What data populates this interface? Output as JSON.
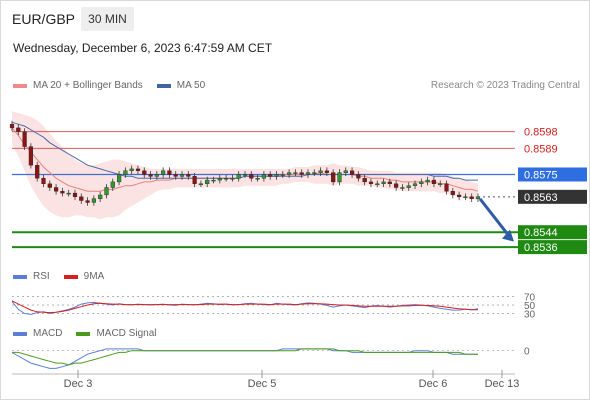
{
  "header": {
    "symbol": "EUR/GBP",
    "timeframe": "30 MIN",
    "datetime": "Wednesday, December 6, 2023 6:47:59 AM CET"
  },
  "legend_main": [
    {
      "label": "MA 20 + Bollinger Bands",
      "color": "#f08a8a"
    },
    {
      "label": "MA 50",
      "color": "#3f64a5"
    }
  ],
  "copyright": "Research © 2023 Trading Central",
  "legend_rsi": [
    {
      "label": "RSI",
      "color": "#5b7fd6"
    },
    {
      "label": "9MA",
      "color": "#d62020"
    }
  ],
  "legend_macd": [
    {
      "label": "MACD",
      "color": "#5b7fd6"
    },
    {
      "label": "MACD Signal",
      "color": "#4c9a1c"
    }
  ],
  "chart_data": {
    "type": "candlestick",
    "x_tick_labels": [
      "Dec 3",
      "Dec 5",
      "Dec 6",
      "Dec 13"
    ],
    "price_ylim": [
      0.8528,
      0.8615
    ],
    "last_price": 0.8563,
    "levels": [
      {
        "value": 0.8598,
        "label": "0.8598",
        "kind": "resistance"
      },
      {
        "value": 0.8589,
        "label": "0.8589",
        "kind": "resistance"
      },
      {
        "value": 0.8575,
        "label": "0.8575",
        "kind": "pivot"
      },
      {
        "value": 0.8563,
        "label": "0.8563",
        "kind": "last"
      },
      {
        "value": 0.8544,
        "label": "0.8544",
        "kind": "support"
      },
      {
        "value": 0.8536,
        "label": "0.8536",
        "kind": "support"
      }
    ],
    "forecast_target": 0.854,
    "close_series": [
      0.86,
      0.8598,
      0.859,
      0.858,
      0.8573,
      0.857,
      0.8568,
      0.8566,
      0.8565,
      0.8565,
      0.8563,
      0.8561,
      0.856,
      0.8562,
      0.8564,
      0.8568,
      0.8571,
      0.8575,
      0.8577,
      0.8578,
      0.8577,
      0.8575,
      0.8574,
      0.8575,
      0.8577,
      0.8575,
      0.8574,
      0.8575,
      0.8574,
      0.857,
      0.857,
      0.8572,
      0.8572,
      0.8573,
      0.8573,
      0.8573,
      0.8575,
      0.8575,
      0.8573,
      0.8573,
      0.8575,
      0.8574,
      0.8575,
      0.8575,
      0.8576,
      0.8576,
      0.8575,
      0.8576,
      0.8576,
      0.8577,
      0.8576,
      0.8571,
      0.8576,
      0.8577,
      0.8575,
      0.8573,
      0.8571,
      0.857,
      0.857,
      0.8571,
      0.857,
      0.8568,
      0.8568,
      0.8569,
      0.857,
      0.8571,
      0.8572,
      0.857,
      0.857,
      0.8566,
      0.8564,
      0.8563,
      0.8563,
      0.8562,
      0.8563
    ],
    "ma20": [
      0.86,
      0.8596,
      0.8591,
      0.8587,
      0.8583,
      0.8579,
      0.8576,
      0.8573,
      0.8571,
      0.8569,
      0.8568,
      0.8567,
      0.8566,
      0.8566,
      0.8566,
      0.8567,
      0.8567,
      0.8568,
      0.8569,
      0.8569,
      0.857,
      0.8571,
      0.8571,
      0.8572,
      0.8572,
      0.8572,
      0.8573,
      0.8573,
      0.8573,
      0.8573,
      0.8573,
      0.8573,
      0.8573,
      0.8573,
      0.8573,
      0.8573,
      0.8573,
      0.8574,
      0.8574,
      0.8574,
      0.8574,
      0.8574,
      0.8574,
      0.8575,
      0.8575,
      0.8575,
      0.8575,
      0.8575,
      0.8575,
      0.8576,
      0.8575,
      0.8575,
      0.8575,
      0.8575,
      0.8575,
      0.8574,
      0.8574,
      0.8573,
      0.8573,
      0.8573,
      0.8572,
      0.8572,
      0.8571,
      0.8571,
      0.8571,
      0.8571,
      0.8571,
      0.8571,
      0.857,
      0.857,
      0.8569,
      0.8568,
      0.8567,
      0.8567,
      0.8566
    ],
    "ma50": [
      0.8603,
      0.8602,
      0.8601,
      0.8599,
      0.8597,
      0.8595,
      0.8592,
      0.859,
      0.8588,
      0.8586,
      0.8584,
      0.8582,
      0.858,
      0.8579,
      0.8578,
      0.8577,
      0.8576,
      0.8575,
      0.8574,
      0.8574,
      0.8573,
      0.8573,
      0.8573,
      0.8573,
      0.8573,
      0.8573,
      0.8573,
      0.8573,
      0.8573,
      0.8573,
      0.8573,
      0.8573,
      0.8573,
      0.8573,
      0.8573,
      0.8573,
      0.8573,
      0.8574,
      0.8574,
      0.8574,
      0.8574,
      0.8574,
      0.8574,
      0.8574,
      0.8574,
      0.8574,
      0.8574,
      0.8575,
      0.8575,
      0.8575,
      0.8575,
      0.8575,
      0.8575,
      0.8575,
      0.8575,
      0.8575,
      0.8575,
      0.8575,
      0.8575,
      0.8575,
      0.8575,
      0.8575,
      0.8575,
      0.8575,
      0.8575,
      0.8575,
      0.8575,
      0.8574,
      0.8574,
      0.8574,
      0.8573,
      0.8573,
      0.8572,
      0.8572,
      0.8572
    ],
    "bb_upper": [
      0.8609,
      0.8608,
      0.8607,
      0.8606,
      0.8604,
      0.8601,
      0.8597,
      0.8593,
      0.859,
      0.8586,
      0.8583,
      0.8581,
      0.858,
      0.858,
      0.8581,
      0.8582,
      0.8583,
      0.8583,
      0.8582,
      0.8581,
      0.858,
      0.8579,
      0.8578,
      0.8578,
      0.8578,
      0.8578,
      0.8578,
      0.8578,
      0.8578,
      0.8578,
      0.8578,
      0.8578,
      0.8578,
      0.8578,
      0.8578,
      0.8578,
      0.8578,
      0.8578,
      0.8578,
      0.8578,
      0.8578,
      0.8578,
      0.8578,
      0.8578,
      0.8578,
      0.8579,
      0.8579,
      0.8579,
      0.858,
      0.858,
      0.858,
      0.8581,
      0.858,
      0.858,
      0.8579,
      0.8579,
      0.8578,
      0.8577,
      0.8577,
      0.8577,
      0.8577,
      0.8576,
      0.8576,
      0.8576,
      0.8576,
      0.8576,
      0.8576,
      0.8576,
      0.8576,
      0.8575,
      0.8574,
      0.8573,
      0.8572,
      0.8571,
      0.857
    ],
    "bb_lower": [
      0.8591,
      0.8585,
      0.8577,
      0.8569,
      0.8563,
      0.8558,
      0.8555,
      0.8553,
      0.8552,
      0.8552,
      0.8553,
      0.8553,
      0.8552,
      0.8552,
      0.8551,
      0.8552,
      0.8552,
      0.8553,
      0.8556,
      0.8558,
      0.856,
      0.8562,
      0.8564,
      0.8566,
      0.8567,
      0.8567,
      0.8568,
      0.8568,
      0.8568,
      0.8568,
      0.8568,
      0.8568,
      0.8568,
      0.8568,
      0.8568,
      0.8568,
      0.8568,
      0.8569,
      0.8569,
      0.8569,
      0.8569,
      0.8569,
      0.8569,
      0.857,
      0.857,
      0.8571,
      0.8571,
      0.8571,
      0.857,
      0.857,
      0.857,
      0.8569,
      0.857,
      0.857,
      0.857,
      0.8569,
      0.8569,
      0.8569,
      0.8568,
      0.8568,
      0.8567,
      0.8567,
      0.8566,
      0.8566,
      0.8566,
      0.8566,
      0.8566,
      0.8566,
      0.8565,
      0.8565,
      0.8564,
      0.8563,
      0.8562,
      0.8562,
      0.8561
    ],
    "rsi": {
      "tick_labels": [
        "70",
        "50",
        "30"
      ],
      "tick_values": [
        70,
        50,
        30
      ],
      "ylim": [
        10,
        90
      ],
      "rsi": [
        58,
        40,
        30,
        28,
        32,
        34,
        30,
        33,
        36,
        40,
        45,
        52,
        55,
        56,
        54,
        52,
        50,
        53,
        51,
        50,
        52,
        51,
        50,
        51,
        52,
        50,
        49,
        52,
        51,
        50,
        52,
        54,
        53,
        51,
        52,
        50,
        51,
        53,
        54,
        52,
        51,
        50,
        54,
        52,
        51,
        50,
        53,
        55,
        54,
        52,
        49,
        45,
        48,
        50,
        48,
        46,
        44,
        47,
        49,
        47,
        45,
        47,
        49,
        50,
        51,
        50,
        48,
        45,
        42,
        40,
        38,
        38,
        40,
        39,
        41
      ],
      "ma9": [
        60,
        52,
        45,
        38,
        34,
        33,
        32,
        33,
        35,
        38,
        42,
        46,
        50,
        53,
        54,
        53,
        52,
        52,
        51,
        51,
        51,
        51,
        51,
        51,
        51,
        51,
        51,
        51,
        51,
        51,
        51,
        52,
        52,
        52,
        52,
        51,
        51,
        52,
        52,
        52,
        52,
        51,
        52,
        52,
        52,
        51,
        52,
        53,
        53,
        53,
        52,
        51,
        50,
        50,
        49,
        48,
        47,
        47,
        47,
        47,
        47,
        47,
        48,
        48,
        49,
        49,
        49,
        48,
        47,
        45,
        43,
        41,
        40,
        39,
        39
      ]
    },
    "macd": {
      "tick_labels": [
        "0"
      ],
      "tick_values": [
        0
      ],
      "ylim": [
        -0.0012,
        0.0006
      ],
      "macd": [
        -0.0001,
        -0.0003,
        -0.0005,
        -0.0007,
        -0.0008,
        -0.0009,
        -0.001,
        -0.001,
        -0.0009,
        -0.0008,
        -0.0006,
        -0.0004,
        -0.0002,
        -0.0001,
        0.0,
        0.0001,
        0.0001,
        0.0001,
        0.0001,
        0.0001,
        0.0001,
        0.0,
        0.0,
        0.0,
        0.0,
        0.0,
        0.0,
        0.0,
        0.0,
        0.0,
        0.0,
        0.0,
        0.0,
        0.0,
        0.0,
        0.0,
        0.0,
        0.0,
        0.0,
        0.0,
        0.0,
        0.0,
        0.0,
        0.0001,
        0.0001,
        0.0001,
        0.0001,
        0.0001,
        0.0001,
        0.0001,
        0.0001,
        0.0,
        0.0,
        0.0,
        -0.0001,
        -0.0001,
        -0.0001,
        -0.0001,
        -0.0001,
        -0.0001,
        -0.0001,
        -0.0001,
        -0.0001,
        -0.0001,
        0.0,
        0.0,
        0.0,
        -0.0001,
        -0.0001,
        -0.0001,
        -0.0002,
        -0.0002,
        -0.0002,
        -0.0002,
        -0.0002
      ],
      "signal": [
        -0.0001,
        -0.0001,
        -0.0002,
        -0.0003,
        -0.0004,
        -0.0005,
        -0.0006,
        -0.0007,
        -0.0007,
        -0.0008,
        -0.0007,
        -0.0007,
        -0.0006,
        -0.0005,
        -0.0004,
        -0.0003,
        -0.0002,
        -0.0001,
        -0.0001,
        0.0,
        0.0,
        0.0,
        0.0,
        0.0,
        0.0,
        0.0,
        0.0,
        0.0,
        0.0,
        0.0,
        0.0,
        0.0,
        0.0,
        0.0,
        0.0,
        0.0,
        0.0,
        0.0,
        0.0,
        0.0,
        0.0,
        0.0,
        0.0,
        0.0,
        0.0,
        0.0,
        0.0001,
        0.0001,
        0.0001,
        0.0001,
        0.0001,
        0.0001,
        0.0,
        0.0,
        0.0,
        0.0,
        -0.0001,
        -0.0001,
        -0.0001,
        -0.0001,
        -0.0001,
        -0.0001,
        -0.0001,
        -0.0001,
        -0.0001,
        -0.0001,
        -0.0001,
        -0.0001,
        -0.0001,
        -0.0001,
        -0.0001,
        -0.0001,
        -0.0002,
        -0.0002,
        -0.0002
      ]
    }
  }
}
